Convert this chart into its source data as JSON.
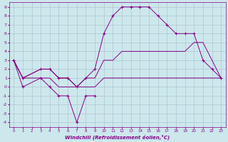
{
  "xlabel": "Windchill (Refroidissement éolien,°C)",
  "bg_color": "#cce8ec",
  "line_color": "#880088",
  "grid_color": "#aabbcc",
  "xlim": [
    -0.5,
    23.5
  ],
  "ylim": [
    -4.5,
    9.5
  ],
  "xticks": [
    0,
    1,
    2,
    3,
    4,
    5,
    6,
    7,
    8,
    9,
    10,
    11,
    12,
    13,
    14,
    15,
    16,
    17,
    18,
    19,
    20,
    21,
    22,
    23
  ],
  "yticks": [
    -4,
    -3,
    -2,
    -1,
    0,
    1,
    2,
    3,
    4,
    5,
    6,
    7,
    8,
    9
  ],
  "series": [
    {
      "x": [
        0,
        1,
        3,
        4,
        5,
        6,
        7,
        8,
        9
      ],
      "y": [
        3,
        0,
        1,
        0,
        -1,
        -1,
        -4,
        -1,
        -1
      ],
      "has_markers": true
    },
    {
      "x": [
        0,
        1,
        3,
        4,
        5,
        6,
        7,
        8,
        9,
        10,
        11,
        12,
        13,
        14,
        15,
        16,
        17,
        18,
        19,
        20,
        21,
        22,
        23
      ],
      "y": [
        3,
        1,
        1,
        1,
        0,
        0,
        0,
        0,
        0,
        1,
        1,
        1,
        1,
        1,
        1,
        1,
        1,
        1,
        1,
        1,
        1,
        1,
        1
      ],
      "has_markers": false
    },
    {
      "x": [
        0,
        1,
        3,
        4,
        5,
        6,
        7,
        8,
        9,
        10,
        11,
        12,
        13,
        14,
        15,
        16,
        17,
        18,
        19,
        20,
        21,
        22,
        23
      ],
      "y": [
        3,
        1,
        2,
        2,
        1,
        1,
        0,
        1,
        1,
        3,
        3,
        4,
        4,
        4,
        4,
        4,
        4,
        4,
        4,
        5,
        5,
        3,
        1
      ],
      "has_markers": false
    },
    {
      "x": [
        0,
        1,
        3,
        4,
        5,
        6,
        7,
        8,
        9,
        10,
        11,
        12,
        13,
        14,
        15,
        16,
        17,
        18,
        19,
        20,
        21,
        22,
        23
      ],
      "y": [
        3,
        1,
        2,
        2,
        1,
        1,
        0,
        1,
        2,
        6,
        8,
        9,
        9,
        9,
        9,
        8,
        7,
        6,
        6,
        6,
        3,
        2,
        1
      ],
      "has_markers": true
    }
  ]
}
